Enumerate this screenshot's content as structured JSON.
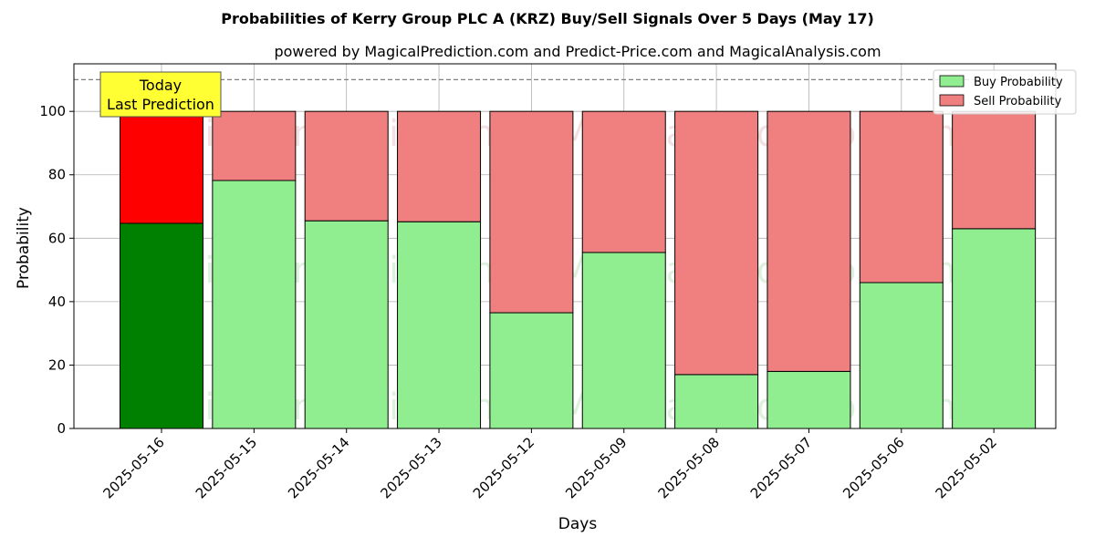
{
  "chart_data": {
    "type": "bar",
    "stacked": true,
    "title": "Probabilities of Kerry Group PLC A (KRZ) Buy/Sell Signals Over 5 Days (May 17)",
    "subtitle": "powered by MagicalPrediction.com and Predict-Price.com and MagicalAnalysis.com",
    "xlabel": "Days",
    "ylabel": "Probability",
    "ylim": [
      0,
      115
    ],
    "yticks": [
      0,
      20,
      40,
      60,
      80,
      100
    ],
    "grid": true,
    "legend_position": "top-right",
    "categories": [
      "2025-05-16",
      "2025-05-15",
      "2025-05-14",
      "2025-05-13",
      "2025-05-12",
      "2025-05-09",
      "2025-05-08",
      "2025-05-07",
      "2025-05-06",
      "2025-05-02"
    ],
    "series": [
      {
        "name": "Buy Probability",
        "values": [
          64.7,
          78.2,
          65.5,
          65.2,
          36.5,
          55.5,
          17.0,
          18.0,
          46.0,
          63.0
        ]
      },
      {
        "name": "Sell Probability",
        "values": [
          35.3,
          21.8,
          34.5,
          34.8,
          63.5,
          44.5,
          83.0,
          82.0,
          54.0,
          37.0
        ]
      }
    ],
    "colors": {
      "buy": "#90ee90",
      "sell": "#f08080",
      "today_buy": "#008000",
      "today_sell": "#ff0000",
      "annotation_bg": "#ffff33"
    },
    "reference_line": 110,
    "annotation": {
      "line1": "Today",
      "line2": "Last Prediction"
    },
    "watermarks": [
      "MagicalAnalysis.com",
      "MagicalPrediction.com"
    ]
  }
}
